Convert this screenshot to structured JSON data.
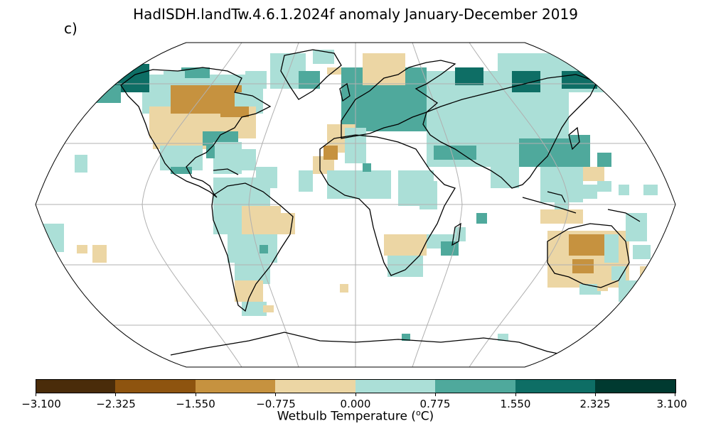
{
  "title": "HadISDH.landTw.4.6.1.2024f anomaly January-December 2019",
  "panel_label": "c)",
  "colorbar": {
    "label_prefix": "Wetbulb Temperature (",
    "label_sup": "o",
    "label_suffix": "C)",
    "ticks": [
      "−3.100",
      "−2.325",
      "−1.550",
      "−0.775",
      "0.000",
      "0.775",
      "1.550",
      "2.325",
      "3.100"
    ],
    "colors": [
      "#4a2c0a",
      "#8e540f",
      "#c6923f",
      "#ecd6a4",
      "#abdfd7",
      "#4fa99c",
      "#0e6e65",
      "#003a30"
    ]
  },
  "map": {
    "projection": "robinson",
    "gridlines": true,
    "colors": {
      "strong_negative": "#c6923f",
      "negative": "#ecd6a4",
      "positive": "#abdfd7",
      "moderate_positive": "#4fa99c",
      "strong_positive": "#0e6e65",
      "coast": "#000000",
      "grid": "#b0b0b0"
    }
  }
}
